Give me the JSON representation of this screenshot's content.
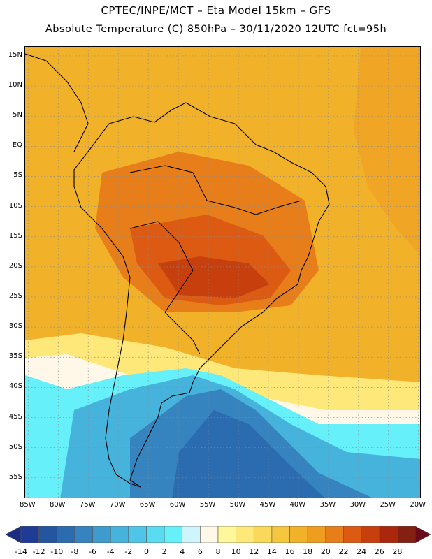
{
  "header": {
    "title_line1": "CPTEC/INPE/MCT –  Eta Model 15km – GFS",
    "title_line2": "Absolute Temperature (C) 850hPa – 30/11/2020 12UTC fct=95h"
  },
  "map": {
    "lat_ticks": [
      "15N",
      "10N",
      "5N",
      "EQ",
      "5S",
      "10S",
      "15S",
      "20S",
      "25S",
      "30S",
      "35S",
      "40S",
      "45S",
      "50S",
      "55S"
    ],
    "lat_values": [
      15,
      10,
      5,
      0,
      -5,
      -10,
      -15,
      -20,
      -25,
      -30,
      -35,
      -40,
      -45,
      -50,
      -55
    ],
    "lon_ticks": [
      "85W",
      "80W",
      "75W",
      "70W",
      "65W",
      "60W",
      "55W",
      "50W",
      "45W",
      "40W",
      "35W",
      "30W",
      "25W",
      "20W"
    ],
    "lon_values": [
      -85,
      -80,
      -75,
      -70,
      -65,
      -60,
      -55,
      -50,
      -45,
      -40,
      -35,
      -30,
      -25,
      -20
    ],
    "lon_range": [
      -85.5,
      -19.5
    ],
    "lat_range": [
      -58.5,
      16.5
    ]
  },
  "colorbar": {
    "labels": [
      "-14",
      "-12",
      "-10",
      "-8",
      "-6",
      "-4",
      "-2",
      "0",
      "2",
      "4",
      "6",
      "8",
      "10",
      "12",
      "14",
      "16",
      "18",
      "20",
      "22",
      "24",
      "26",
      "28"
    ],
    "colors": [
      "#1e3c96",
      "#24559f",
      "#2b6bb0",
      "#3583bf",
      "#3d9ccd",
      "#46b3dc",
      "#4fc6e8",
      "#59dcf2",
      "#66f0fa",
      "#cdf5fb",
      "#fff8e8",
      "#fff79a",
      "#fde879",
      "#f9d85a",
      "#f5c73f",
      "#f1b22a",
      "#ee9d1f",
      "#e77e1a",
      "#dd5a12",
      "#c83f0e",
      "#a9280b",
      "#832012"
    ],
    "left_arrow_color": "#1a2d86",
    "right_arrow_color": "#6a0b1c"
  }
}
